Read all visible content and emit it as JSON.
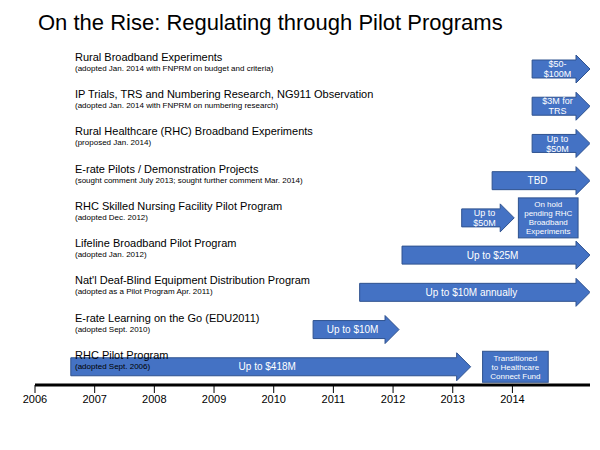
{
  "chart_data": {
    "type": "timeline",
    "title": "On the Rise: Regulating through Pilot Programs",
    "orientation": "horizontal",
    "color": "#4472c4",
    "xlim": [
      2006,
      2015.3
    ],
    "xticks": [
      2006,
      2007,
      2008,
      2009,
      2010,
      2011,
      2012,
      2013,
      2014
    ],
    "programs": [
      {
        "name": "Rural Broadband Experiments",
        "note": "(adopted Jan. 2014 with FNPRM on budget and criteria)",
        "start": 2014.33,
        "end": 2015.3,
        "label": "$50-$100M",
        "next": null
      },
      {
        "name": "IP Trials, TRS and Numbering Research, NG911 Observation",
        "note": "(adopted Jan. 2014 with FNPRM on numbering research)",
        "start": 2014.33,
        "end": 2015.3,
        "label": "$3M for TRS",
        "next": null
      },
      {
        "name": "Rural Healthcare (RHC) Broadband Experiments",
        "note": "(proposed Jan. 2014)",
        "start": 2014.33,
        "end": 2015.3,
        "label": "Up to $50M",
        "next": null
      },
      {
        "name": "E-rate Pilots / Demonstration Projects",
        "note": "(sought comment July 2013; sought further comment Mar. 2014)",
        "start": 2013.66,
        "end": 2015.3,
        "label": "TBD",
        "next": null
      },
      {
        "name": "RHC Skilled Nursing Facility Pilot Program",
        "note": "(adopted Dec. 2012)",
        "start": 2013.15,
        "end": 2014.03,
        "label": "Up to $50M",
        "next": {
          "start": 2014.1,
          "end": 2015.1,
          "label": "On hold pending RHC Broadband Experiments"
        }
      },
      {
        "name": "Lifeline Broadband Pilot Program",
        "note": "(adopted Jan. 2012)",
        "start": 2012.15,
        "end": 2015.3,
        "label": "Up to $25M",
        "next": null
      },
      {
        "name": "Nat'l Deaf-Blind Equipment Distribution Program",
        "note": "(adopted as a Pilot Program Apr. 2011)",
        "start": 2011.44,
        "end": 2015.3,
        "label": "Up to $10M annually",
        "next": null
      },
      {
        "name": "E-rate Learning on the Go (EDU2011)",
        "note": "(adopted Sept. 2010)",
        "start": 2010.66,
        "end": 2012.1,
        "label": "Up to $10M",
        "next": null
      },
      {
        "name": "RHC Pilot Program",
        "note": "(adopted Sept. 2006)",
        "start": 2006.6,
        "end": 2013.3,
        "label": "Up to $418M",
        "next": {
          "start": 2013.5,
          "end": 2014.6,
          "label": "Transitioned to Healthcare Connect Fund"
        }
      }
    ]
  }
}
